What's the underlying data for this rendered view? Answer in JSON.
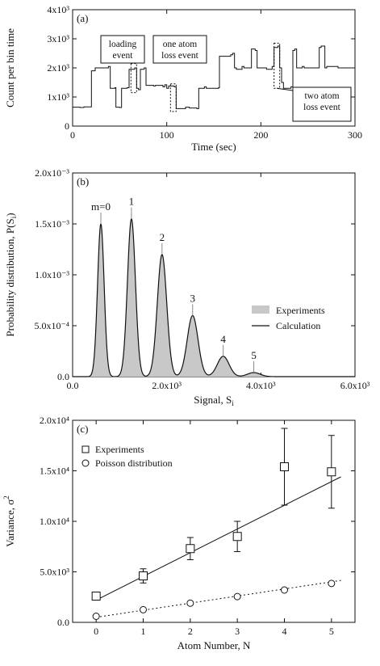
{
  "chart_data": [
    {
      "panel": "(a)",
      "type": "line",
      "xlabel": "Time (sec)",
      "ylabel": "Count per bin time",
      "xlim": [
        0,
        300
      ],
      "ylim": [
        0,
        4000
      ],
      "x_ticks": [
        0,
        100,
        200,
        300
      ],
      "x_tick_labels": [
        "0",
        "100",
        "200",
        "300"
      ],
      "y_ticks": [
        0,
        1000,
        2000,
        3000,
        4000
      ],
      "y_tick_labels": [
        "0",
        "1x10³",
        "2x10³",
        "3x10³",
        "4x10³"
      ],
      "series": [
        {
          "x": [
            0,
            8,
            12,
            20,
            24,
            38,
            40,
            45,
            46,
            50,
            52,
            58,
            60,
            66,
            68,
            70,
            72,
            76,
            78,
            86,
            88,
            96,
            98,
            100,
            102,
            108,
            110,
            120,
            124,
            132,
            134,
            140,
            142,
            155,
            156,
            168,
            170,
            172,
            174,
            180,
            182,
            188,
            190,
            194,
            196,
            204,
            206,
            212,
            214,
            218,
            220,
            222,
            224,
            232,
            234,
            236,
            238,
            244,
            246,
            254,
            256,
            262,
            264,
            268,
            270,
            282,
            284,
            300
          ],
          "values": [
            650,
            640,
            660,
            1900,
            2000,
            2050,
            1300,
            1320,
            650,
            640,
            1300,
            1320,
            1950,
            2000,
            1300,
            1250,
            1950,
            2000,
            1400,
            1380,
            1400,
            1350,
            1420,
            1300,
            1380,
            1350,
            600,
            650,
            620,
            600,
            1300,
            1350,
            1300,
            1320,
            2400,
            2450,
            2500,
            2000,
            1950,
            2050,
            2000,
            2000,
            2650,
            2600,
            2000,
            2000,
            1950,
            2050,
            2700,
            2750,
            2000,
            1500,
            1300,
            1350,
            2600,
            2650,
            2000,
            2050,
            2000,
            2000,
            2000,
            2700,
            2750,
            2000,
            2050,
            2000,
            2000,
            2050
          ]
        }
      ],
      "annotations": [
        {
          "text": [
            "loading",
            "event"
          ],
          "x": 68
        },
        {
          "text": [
            "one atom",
            "loss event"
          ],
          "x": 107
        },
        {
          "text": [
            "two atom",
            "loss event"
          ],
          "x": 218
        }
      ]
    },
    {
      "panel": "(b)",
      "type": "area",
      "xlabel": "Signal, S",
      "xlabel_sub": "i",
      "ylabel": "Probability distribution, P(S",
      "ylabel_sub": "i",
      "ylabel_tail": ")",
      "xlim": [
        0,
        6000
      ],
      "ylim": [
        0,
        0.002
      ],
      "x_ticks": [
        0,
        2000,
        4000,
        6000
      ],
      "x_tick_labels": [
        "0.0",
        "2.0x10³",
        "4.0x10³",
        "6.0x10³"
      ],
      "y_ticks": [
        0,
        0.0005,
        0.001,
        0.0015,
        0.002
      ],
      "y_tick_labels": [
        "0.0",
        "5.0x10⁻⁴",
        "1.0x10⁻³",
        "1.5x10⁻³",
        "2.0x10⁻³"
      ],
      "peaks": [
        {
          "m": "m=0",
          "center": 600,
          "height": 0.0015,
          "width": 70
        },
        {
          "m": "1",
          "center": 1250,
          "height": 0.00155,
          "width": 85
        },
        {
          "m": "2",
          "center": 1900,
          "height": 0.0012,
          "width": 100
        },
        {
          "m": "3",
          "center": 2550,
          "height": 0.0006,
          "width": 115
        },
        {
          "m": "4",
          "center": 3200,
          "height": 0.0002,
          "width": 125
        },
        {
          "m": "5",
          "center": 3850,
          "height": 4e-05,
          "width": 135
        }
      ],
      "legend": [
        {
          "name": "Experiments",
          "style": "filled"
        },
        {
          "name": "Calculation",
          "style": "line"
        }
      ],
      "legend_position": "right"
    },
    {
      "panel": "(c)",
      "type": "scatter",
      "xlabel": "Atom Number, N",
      "ylabel": "Variance, σ",
      "ylabel_sup": "2",
      "xlim": [
        -0.5,
        5.5
      ],
      "ylim": [
        0,
        20000
      ],
      "x_ticks": [
        0,
        1,
        2,
        3,
        4,
        5
      ],
      "x_tick_labels": [
        "0",
        "1",
        "2",
        "3",
        "4",
        "5"
      ],
      "y_ticks": [
        0,
        5000,
        10000,
        15000,
        20000
      ],
      "y_tick_labels": [
        "0.0",
        "5.0x10³",
        "1.0x10⁴",
        "1.5x10⁴",
        "2.0x10⁴"
      ],
      "series": [
        {
          "name": "Experiments",
          "marker": "square",
          "x": [
            0,
            1,
            2,
            3,
            4,
            5
          ],
          "values": [
            2600,
            4600,
            7300,
            8500,
            15400,
            14900
          ],
          "errors": [
            300,
            700,
            1100,
            1500,
            3800,
            3600
          ],
          "fit": {
            "x": [
              0,
              5.2
            ],
            "values": [
              2200,
              14400
            ],
            "style": "solid"
          }
        },
        {
          "name": "Poisson distribution",
          "marker": "circle",
          "x": [
            0,
            1,
            2,
            3,
            4,
            5
          ],
          "values": [
            600,
            1250,
            1900,
            2550,
            3200,
            3850
          ],
          "fit": {
            "x": [
              0,
              5.2
            ],
            "values": [
              500,
              4150
            ],
            "style": "dotted"
          }
        }
      ],
      "legend_position": "top-left"
    }
  ]
}
